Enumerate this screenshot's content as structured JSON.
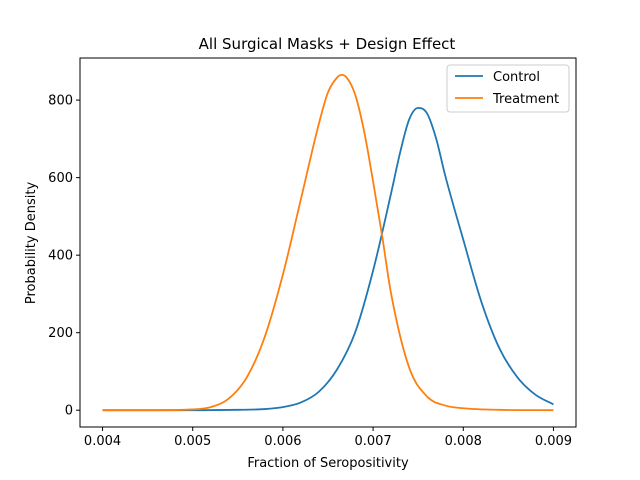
{
  "chart_data": {
    "type": "line",
    "title": "All Surgical Masks + Design Effect",
    "xlabel": "Fraction of Seropositivity",
    "ylabel": "Probability Density",
    "xlim": [
      0.00375,
      0.00925
    ],
    "ylim": [
      -43.3,
      908.6
    ],
    "xticks": [
      0.004,
      0.005,
      0.006,
      0.007,
      0.008,
      0.009
    ],
    "xtick_labels": [
      "0.004",
      "0.005",
      "0.006",
      "0.007",
      "0.008",
      "0.009"
    ],
    "yticks": [
      0,
      200,
      400,
      600,
      800
    ],
    "ytick_labels": [
      "0",
      "200",
      "400",
      "600",
      "800"
    ],
    "grid": false,
    "legend_position": "top-right",
    "series": [
      {
        "name": "Control",
        "color": "#1f77b4",
        "x": [
          0.004,
          0.0045,
          0.005,
          0.0055,
          0.0058,
          0.006,
          0.0062,
          0.0064,
          0.0066,
          0.0068,
          0.007,
          0.0072,
          0.0073,
          0.0074,
          0.0075,
          0.0076,
          0.0077,
          0.0078,
          0.008,
          0.0082,
          0.0084,
          0.0086,
          0.0088,
          0.009
        ],
        "y": [
          0,
          0,
          0,
          1,
          3,
          8,
          20,
          48,
          105,
          200,
          360,
          560,
          665,
          750,
          780,
          765,
          700,
          605,
          440,
          280,
          160,
          85,
          40,
          15
        ]
      },
      {
        "name": "Treatment",
        "color": "#ff7f0e",
        "x": [
          0.004,
          0.0045,
          0.005,
          0.0052,
          0.0054,
          0.0056,
          0.0058,
          0.006,
          0.0062,
          0.0064,
          0.0065,
          0.0066,
          0.00665,
          0.0067,
          0.0068,
          0.0069,
          0.007,
          0.0071,
          0.0072,
          0.0074,
          0.0076,
          0.0078,
          0.008,
          0.0084,
          0.009
        ],
        "y": [
          0,
          0,
          2,
          8,
          30,
          85,
          190,
          350,
          545,
          740,
          820,
          858,
          865,
          860,
          815,
          720,
          590,
          450,
          300,
          110,
          35,
          12,
          5,
          1,
          0
        ]
      }
    ]
  }
}
